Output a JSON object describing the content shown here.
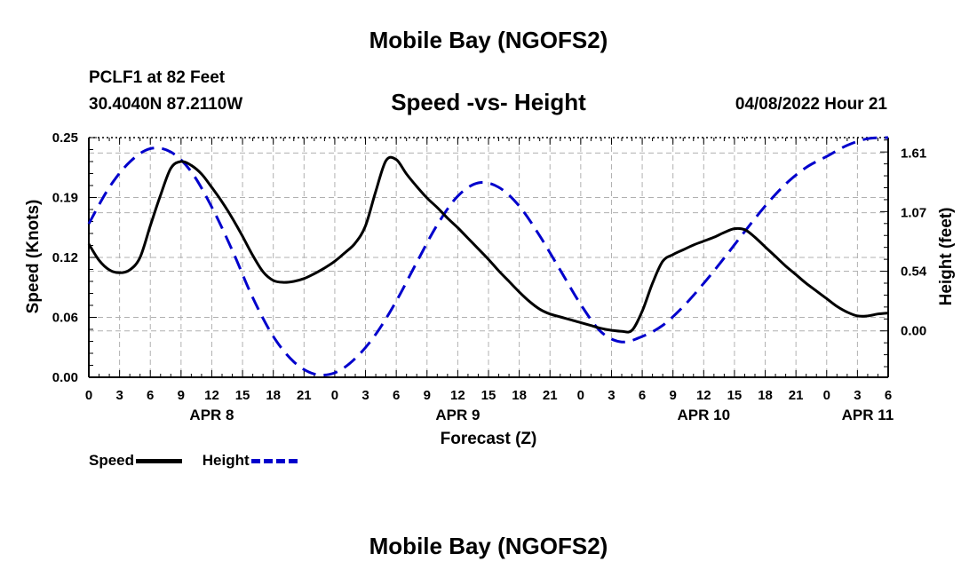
{
  "header": {
    "title": "Mobile Bay (NGOFS2)",
    "station": "PCLF1 at 82 Feet",
    "coords": "30.4040N  87.2110W",
    "chart_title": "Speed -vs- Height",
    "datetime": "04/08/2022 Hour 21"
  },
  "footer": {
    "title": "Mobile Bay (NGOFS2)"
  },
  "colors": {
    "speed": "#000000",
    "height": "#0000cc",
    "grid": "#b0b0b0"
  },
  "chart_data": {
    "type": "line",
    "xlabel": "Forecast (Z)",
    "ylabel_left": "Speed (Knots)",
    "ylabel_right": "Height (feet)",
    "x_unit": "hours from 2022-04-08 00Z",
    "xlim": [
      0,
      78
    ],
    "ylim_left": [
      0,
      0.25
    ],
    "ylim_right": [
      -0.42,
      1.75
    ],
    "x_ticks": [
      0,
      3,
      6,
      9,
      12,
      15,
      18,
      21,
      24,
      27,
      30,
      33,
      36,
      39,
      42,
      45,
      48,
      51,
      54,
      57,
      60,
      63,
      66,
      69,
      72,
      75,
      78
    ],
    "x_tick_labels": [
      "0",
      "3",
      "6",
      "9",
      "12",
      "15",
      "18",
      "21",
      "0",
      "3",
      "6",
      "9",
      "12",
      "15",
      "18",
      "21",
      "0",
      "3",
      "6",
      "9",
      "12",
      "15",
      "18",
      "21",
      "0",
      "3",
      "6"
    ],
    "date_labels": [
      {
        "x": 12,
        "text": "APR 8"
      },
      {
        "x": 36,
        "text": "APR 9"
      },
      {
        "x": 60,
        "text": "APR 10"
      },
      {
        "x": 76,
        "text": "APR 11"
      }
    ],
    "y_left_ticks": [
      0.0,
      0.0625,
      0.125,
      0.1875,
      0.25
    ],
    "y_left_tick_labels": [
      "0.00",
      "0.06",
      "0.12",
      "0.19",
      "0.25"
    ],
    "y_right_ticks": [
      0.0,
      0.54,
      1.07,
      1.61
    ],
    "y_right_tick_labels": [
      "0.00",
      "0.54",
      "1.07",
      "1.61"
    ],
    "grid": true,
    "legend": {
      "position": "bottom-left",
      "entries": [
        "Speed",
        "Height"
      ]
    },
    "series": [
      {
        "name": "Speed",
        "axis": "left",
        "style": "solid",
        "x": [
          0,
          1,
          2,
          3,
          4,
          5,
          6,
          7,
          8,
          9,
          10,
          11,
          12,
          13,
          14,
          15,
          16,
          17,
          18,
          19,
          20,
          21,
          22,
          23,
          24,
          25,
          26,
          27,
          28,
          29,
          30,
          31,
          32,
          33,
          34,
          35,
          36,
          37,
          38,
          39,
          40,
          41,
          42,
          43,
          44,
          45,
          46,
          47,
          48,
          49,
          50,
          51,
          52,
          53,
          54,
          55,
          56,
          57,
          58,
          59,
          60,
          61,
          62,
          63,
          64,
          65,
          66,
          67,
          68,
          69,
          70,
          71,
          72,
          73,
          74,
          75,
          76,
          77,
          78
        ],
        "y": [
          0.139,
          0.122,
          0.112,
          0.109,
          0.112,
          0.125,
          0.158,
          0.19,
          0.218,
          0.225,
          0.221,
          0.212,
          0.198,
          0.183,
          0.166,
          0.147,
          0.127,
          0.11,
          0.101,
          0.099,
          0.1,
          0.103,
          0.108,
          0.114,
          0.121,
          0.13,
          0.14,
          0.158,
          0.194,
          0.226,
          0.227,
          0.212,
          0.199,
          0.187,
          0.177,
          0.166,
          0.156,
          0.145,
          0.134,
          0.123,
          0.111,
          0.1,
          0.089,
          0.079,
          0.071,
          0.066,
          0.063,
          0.06,
          0.057,
          0.054,
          0.051,
          0.049,
          0.048,
          0.049,
          0.069,
          0.098,
          0.121,
          0.128,
          0.133,
          0.138,
          0.142,
          0.146,
          0.151,
          0.155,
          0.154,
          0.146,
          0.136,
          0.126,
          0.116,
          0.107,
          0.098,
          0.09,
          0.082,
          0.074,
          0.068,
          0.064,
          0.064,
          0.066,
          0.067
        ]
      },
      {
        "name": "Height",
        "axis": "right",
        "style": "dashed",
        "x": [
          0,
          2,
          4,
          6,
          8,
          10,
          12,
          14,
          16,
          18,
          20,
          22,
          24,
          26,
          28,
          30,
          32,
          34,
          36,
          38,
          40,
          42,
          44,
          46,
          48,
          50,
          52,
          54,
          56,
          58,
          60,
          62,
          64,
          66,
          68,
          70,
          72,
          74,
          76,
          78
        ],
        "y": [
          0.97,
          1.3,
          1.53,
          1.65,
          1.62,
          1.44,
          1.12,
          0.73,
          0.3,
          -0.05,
          -0.28,
          -0.39,
          -0.38,
          -0.25,
          -0.03,
          0.27,
          0.62,
          0.96,
          1.22,
          1.34,
          1.3,
          1.13,
          0.86,
          0.55,
          0.24,
          -0.01,
          -0.1,
          -0.05,
          0.05,
          0.22,
          0.43,
          0.66,
          0.9,
          1.13,
          1.33,
          1.48,
          1.58,
          1.68,
          1.74,
          1.75
        ]
      }
    ]
  }
}
